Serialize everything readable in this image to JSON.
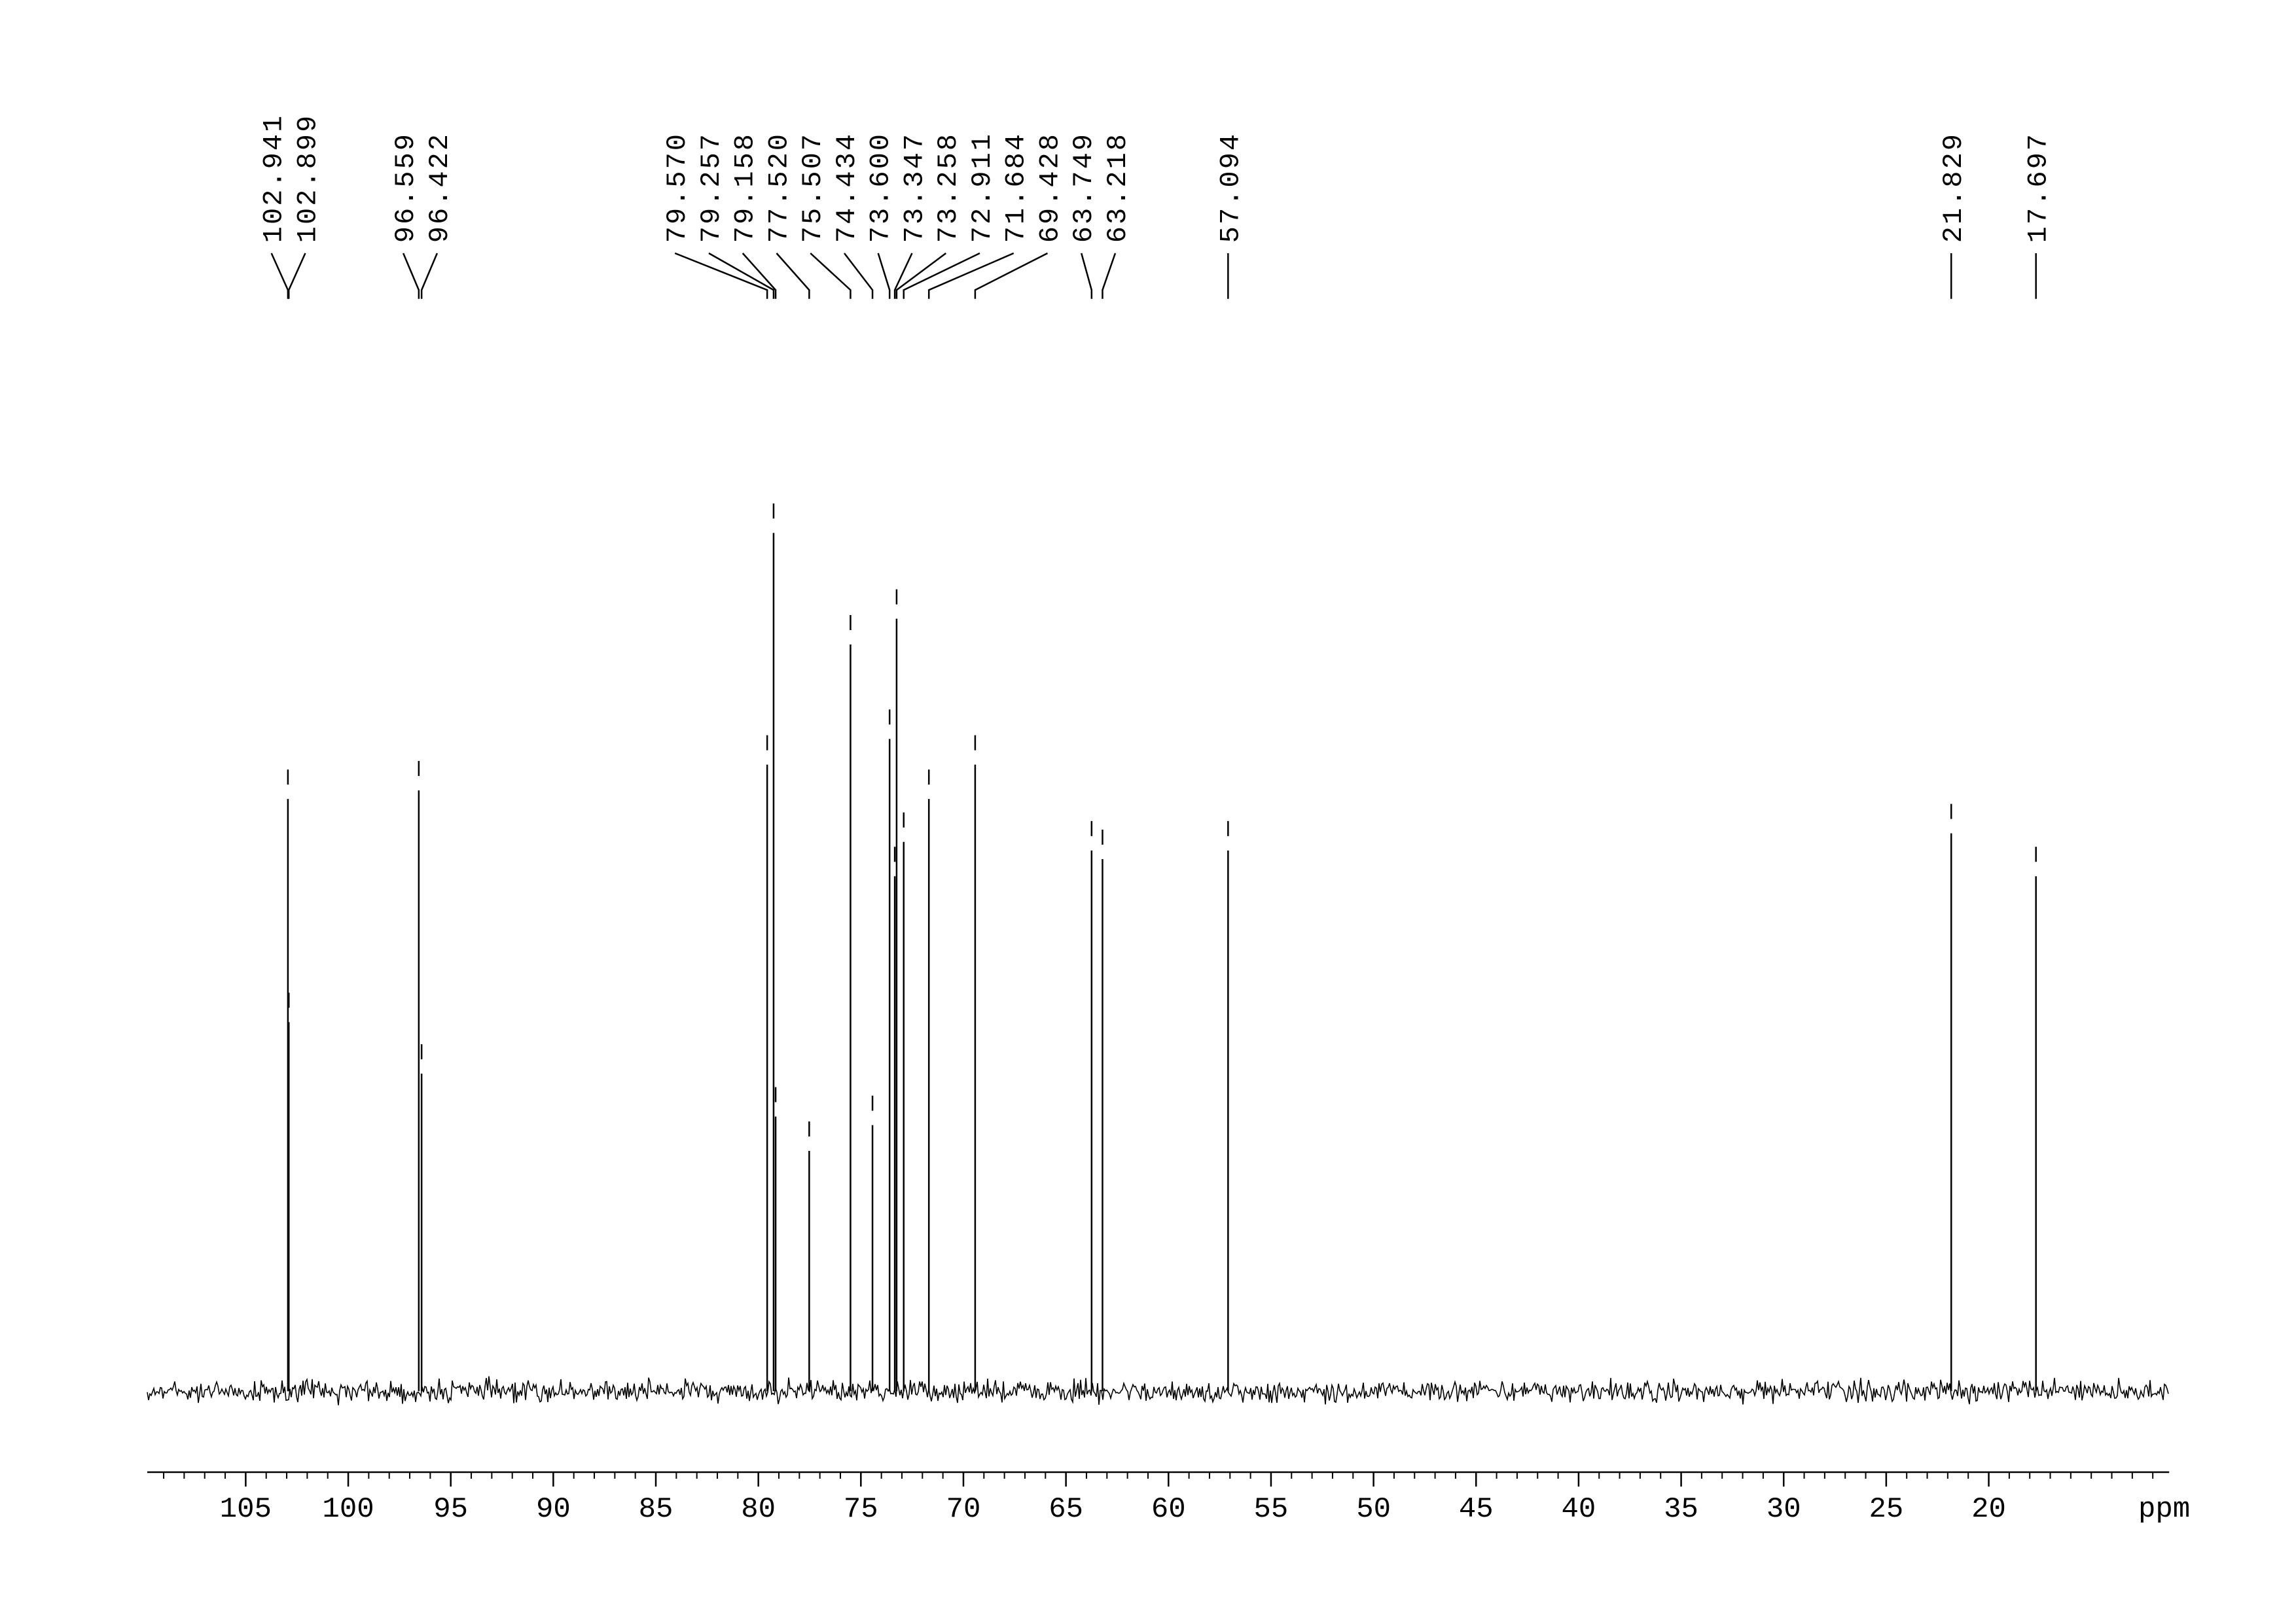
{
  "chart_data": {
    "type": "nmr",
    "x_label": "ppm",
    "xlim": [
      109.8,
      11.2
    ],
    "ylim": [
      0,
      100
    ],
    "xticks": [
      105,
      100,
      95,
      90,
      85,
      80,
      75,
      70,
      65,
      60,
      55,
      50,
      45,
      40,
      35,
      30,
      25,
      20
    ],
    "xminorticks": [
      109,
      108,
      107,
      106,
      105,
      104,
      103,
      102,
      101,
      100,
      99,
      98,
      97,
      96,
      95,
      94,
      93,
      92,
      91,
      90,
      89,
      88,
      87,
      86,
      85,
      84,
      83,
      82,
      81,
      80,
      79,
      78,
      77,
      76,
      75,
      74,
      73,
      72,
      71,
      70,
      69,
      68,
      67,
      66,
      65,
      64,
      63,
      62,
      61,
      60,
      59,
      58,
      57,
      56,
      55,
      54,
      53,
      52,
      51,
      50,
      49,
      48,
      47,
      46,
      45,
      44,
      43,
      42,
      41,
      40,
      39,
      38,
      37,
      36,
      35,
      34,
      33,
      32,
      31,
      30,
      29,
      28,
      27,
      26,
      25,
      24,
      23,
      22,
      21,
      20,
      19,
      18,
      17,
      16,
      15,
      14,
      13,
      12
    ],
    "color": "#000000",
    "x": [
      102.941,
      102.899,
      96.559,
      96.422,
      79.57,
      79.257,
      79.158,
      77.52,
      75.507,
      74.434,
      73.6,
      73.347,
      73.258,
      72.911,
      71.684,
      69.428,
      63.749,
      63.218,
      57.094,
      21.829,
      17.697
    ],
    "value_labels": [
      "102.941",
      "102.899",
      "96.559",
      "96.422",
      "79.570",
      "79.257",
      "79.158",
      "77.520",
      "75.507",
      "74.434",
      "73.600",
      "73.347",
      "73.258",
      "72.911",
      "71.684",
      "69.428",
      "63.749",
      "63.218",
      "57.094",
      "21.829",
      "17.697"
    ],
    "values": [
      69,
      43,
      70,
      37,
      73,
      100,
      32,
      28,
      87,
      31,
      76,
      60,
      90,
      64,
      69,
      73,
      63,
      62,
      63,
      65,
      60
    ]
  }
}
